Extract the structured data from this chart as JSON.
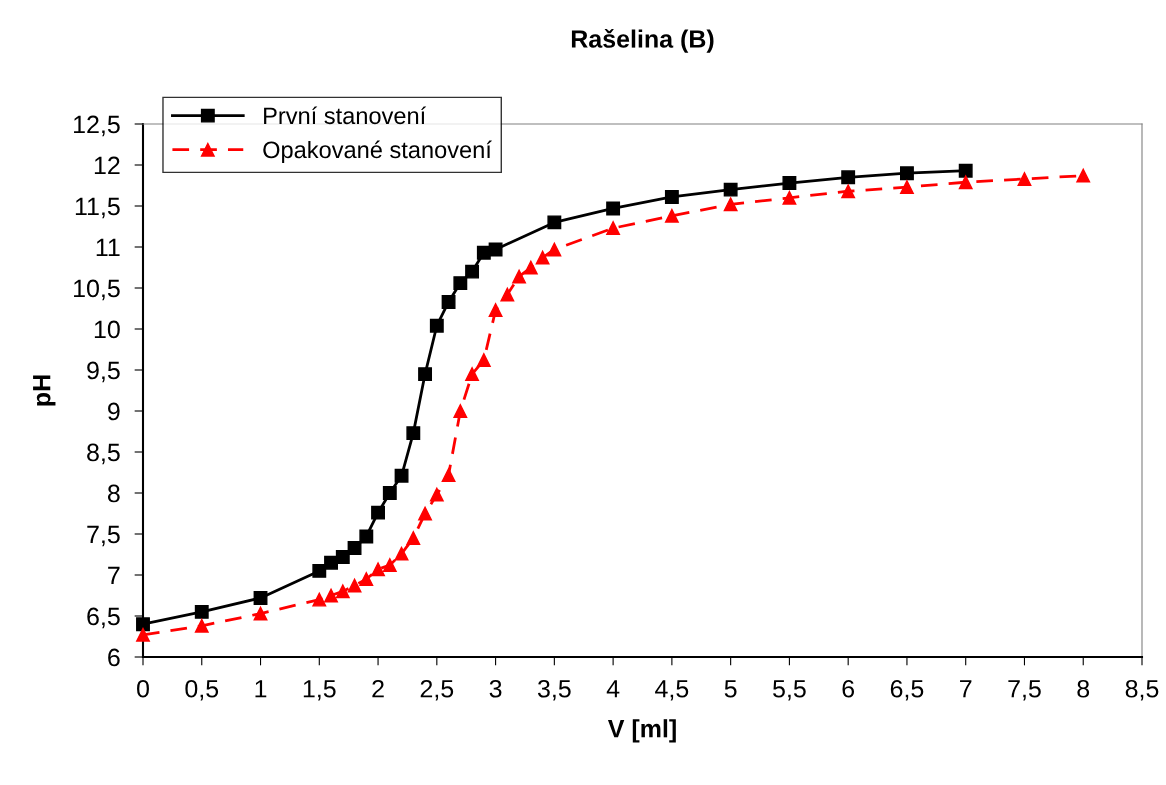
{
  "chart_data": {
    "type": "line",
    "title": "Rašelina (B)",
    "xlabel": "V [ml]",
    "ylabel": "pH",
    "xlim": [
      0,
      8.5
    ],
    "xticks": [
      0,
      {
        "value": 0.5,
        "label": "0,5"
      },
      1,
      {
        "value": 1.5,
        "label": "1,5"
      },
      2,
      {
        "value": 2.5,
        "label": "2,5"
      },
      3,
      {
        "value": 3.5,
        "label": "3,5"
      },
      4,
      {
        "value": 4.5,
        "label": "4,5"
      },
      5,
      {
        "value": 5.5,
        "label": "5,5"
      },
      6,
      {
        "value": 6.5,
        "label": "6,5"
      },
      7,
      {
        "value": 7.5,
        "label": "7,5"
      },
      8,
      {
        "value": 8.5,
        "label": "8,5"
      }
    ],
    "ylim": [
      6,
      12.5
    ],
    "yticks": [
      6,
      {
        "value": 6.5,
        "label": "6,5"
      },
      7,
      {
        "value": 7.5,
        "label": "7,5"
      },
      8,
      {
        "value": 8.5,
        "label": "8,5"
      },
      9,
      {
        "value": 9.5,
        "label": "9,5"
      },
      10,
      {
        "value": 10.5,
        "label": "10,5"
      },
      11,
      {
        "value": 11.5,
        "label": "11,5"
      },
      12,
      {
        "value": 12.5,
        "label": "12,5"
      }
    ],
    "grid": false,
    "legend": "top left",
    "series": [
      {
        "name": "První stanovení",
        "color": "#000000",
        "marker": "square",
        "line_style": "solid",
        "x": [
          0,
          0.5,
          1,
          1.5,
          1.6,
          1.7,
          1.8,
          1.9,
          2.0,
          2.1,
          2.2,
          2.3,
          2.4,
          2.5,
          2.6,
          2.7,
          2.8,
          2.9,
          3.0,
          3.5,
          4,
          4.5,
          5,
          5.5,
          6,
          6.5,
          7
        ],
        "values": [
          6.4,
          6.55,
          6.72,
          7.05,
          7.15,
          7.22,
          7.33,
          7.47,
          7.76,
          8.0,
          8.21,
          8.73,
          9.45,
          10.04,
          10.33,
          10.56,
          10.7,
          10.93,
          10.97,
          11.3,
          11.47,
          11.61,
          11.7,
          11.78,
          11.85,
          11.9,
          11.93
        ]
      },
      {
        "name": "Opakované stanovení",
        "color": "#ff0000",
        "marker": "triangle",
        "line_style": "dashed",
        "x": [
          0,
          0.5,
          1,
          1.5,
          1.6,
          1.7,
          1.8,
          1.9,
          2.0,
          2.1,
          2.2,
          2.3,
          2.4,
          2.5,
          2.6,
          2.7,
          2.8,
          2.9,
          3.0,
          3.1,
          3.2,
          3.3,
          3.4,
          3.5,
          4,
          4.5,
          5,
          5.5,
          6,
          6.5,
          7,
          7.5,
          8
        ],
        "values": [
          6.27,
          6.38,
          6.53,
          6.7,
          6.75,
          6.8,
          6.87,
          6.95,
          7.07,
          7.12,
          7.26,
          7.45,
          7.75,
          7.98,
          8.22,
          9.0,
          9.45,
          9.62,
          10.23,
          10.42,
          10.64,
          10.75,
          10.87,
          10.97,
          11.23,
          11.38,
          11.52,
          11.6,
          11.68,
          11.73,
          11.79,
          11.83,
          11.87
        ]
      }
    ]
  }
}
